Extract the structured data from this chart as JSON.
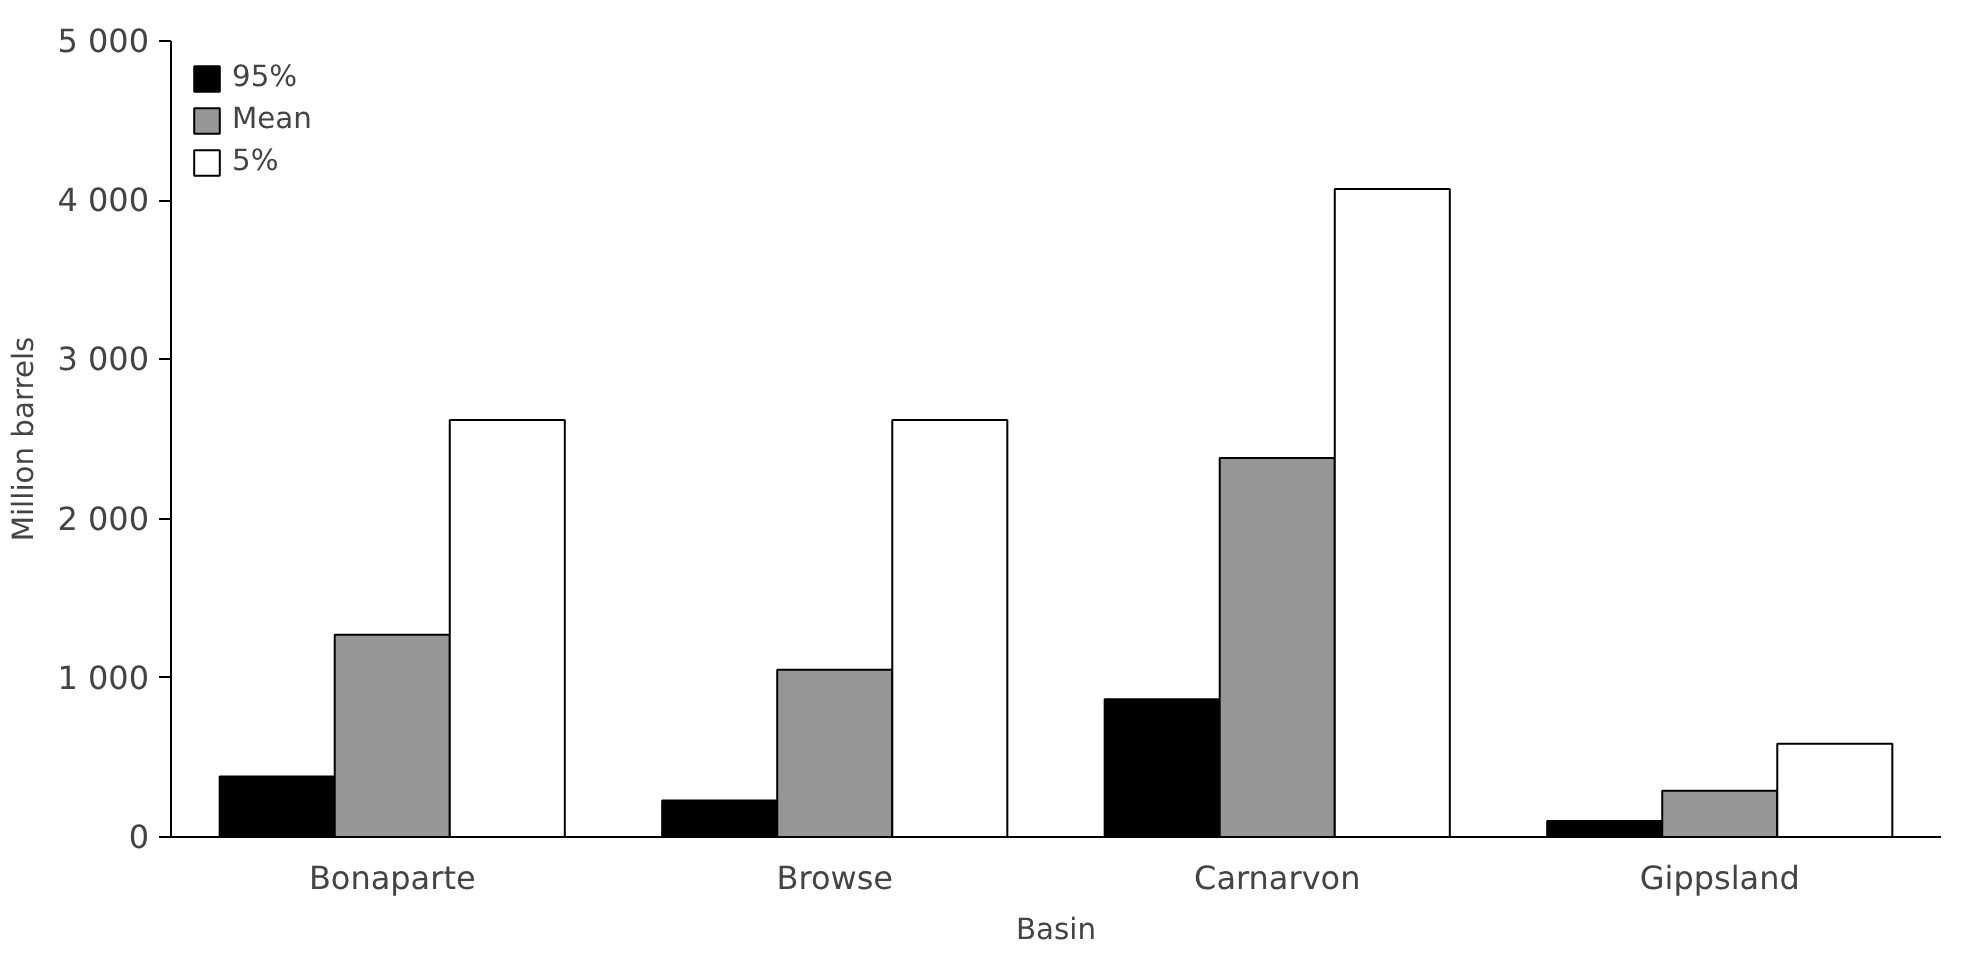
{
  "chart_data": {
    "type": "bar",
    "xlabel": "Basin",
    "ylabel": "Million barrels",
    "categories": [
      "Bonaparte",
      "Browse",
      "Carnarvon",
      "Gippsland"
    ],
    "series": [
      {
        "name": "95%",
        "color": "#000000",
        "values": [
          380,
          230,
          865,
          100
        ]
      },
      {
        "name": "Mean",
        "color": "#969696",
        "values": [
          1270,
          1050,
          2380,
          290
        ]
      },
      {
        "name": "5%",
        "color": "#ffffff",
        "values": [
          2620,
          2620,
          4070,
          585
        ]
      }
    ],
    "ylim": [
      0,
      5000
    ],
    "yticks": [
      {
        "value": 0,
        "label": "0"
      },
      {
        "value": 1000,
        "label": "1 000"
      },
      {
        "value": 2000,
        "label": "2 000"
      },
      {
        "value": 3000,
        "label": "3 000"
      },
      {
        "value": 4000,
        "label": "4 000"
      },
      {
        "value": 5000,
        "label": "5 000"
      }
    ],
    "grid": false,
    "legend": "top left"
  }
}
